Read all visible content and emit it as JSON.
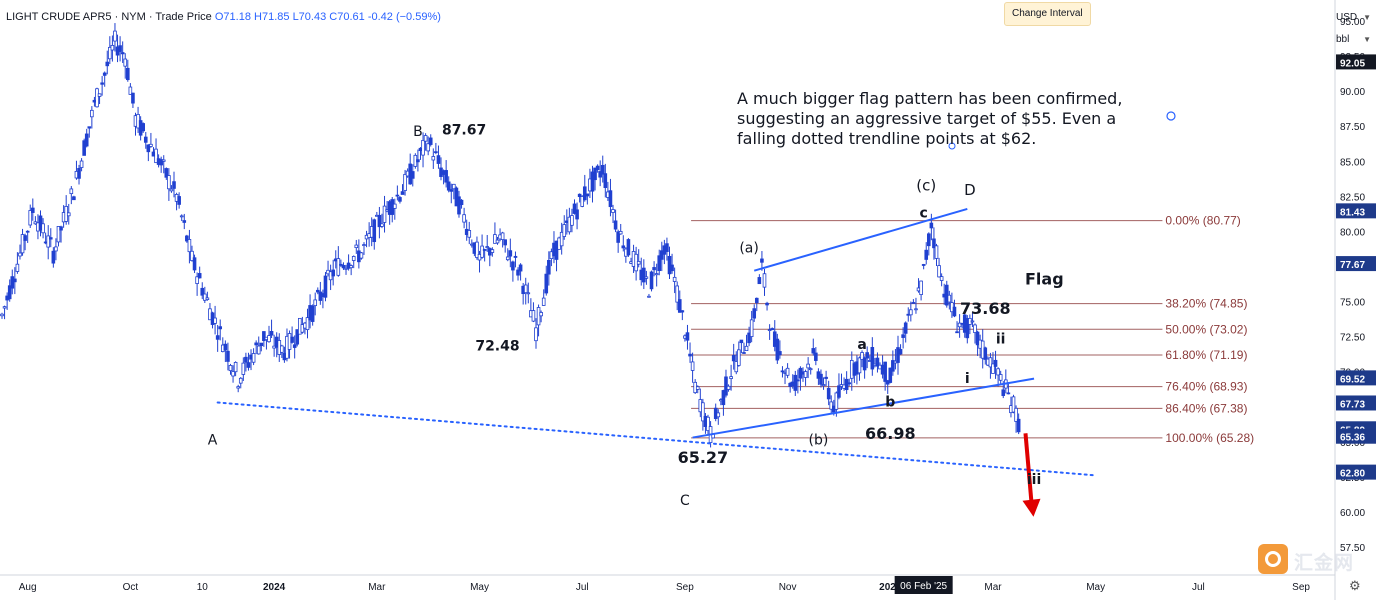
{
  "header": {
    "symbol": "LIGHT CRUDE APR5 · NYM · Trade Price",
    "open": "O71.18",
    "high": "H71.85",
    "low": "L70.43",
    "close": "C70.61",
    "change": "-0.42 (−0.59%)"
  },
  "tooltip": "Change Interval",
  "currency": "USD",
  "unit": "bbl",
  "watermark": "汇金网",
  "colors": {
    "candle": "#2040d0",
    "trendline": "#2962ff",
    "fib_line": "#8b3a3a",
    "arrow": "#e00000",
    "price_label_bg": "#1e3a8a"
  },
  "chart_data": {
    "type": "candlestick",
    "yaxis": {
      "range": [
        55.5,
        96.5
      ],
      "ticks": [
        "57.50",
        "60.00",
        "62.50",
        "65.00",
        "67.50",
        "70.00",
        "72.50",
        "75.00",
        "77.50",
        "80.00",
        "82.50",
        "85.00",
        "87.50",
        "90.00",
        "92.50",
        "95.00"
      ]
    },
    "xaxis": {
      "ticks": [
        {
          "label": "Aug",
          "t": 0.5
        },
        {
          "label": "Oct",
          "t": 2.5
        },
        {
          "label": "10",
          "t": 3.9
        },
        {
          "label": "2024",
          "t": 5.3
        },
        {
          "label": "Mar",
          "t": 7.3
        },
        {
          "label": "May",
          "t": 9.3
        },
        {
          "label": "Jul",
          "t": 11.3
        },
        {
          "label": "Sep",
          "t": 13.3
        },
        {
          "label": "Nov",
          "t": 15.3
        },
        {
          "label": "2025",
          "t": 17.3
        },
        {
          "label": "Mar",
          "t": 19.3
        },
        {
          "label": "May",
          "t": 21.3
        },
        {
          "label": "Jul",
          "t": 23.3
        },
        {
          "label": "Sep",
          "t": 25.3
        }
      ],
      "date_flag": {
        "label": "06 Feb '25",
        "t": 17.95
      }
    },
    "price_path": [
      [
        0.0,
        74.0
      ],
      [
        0.6,
        81.5
      ],
      [
        1.0,
        78.5
      ],
      [
        1.4,
        83.0
      ],
      [
        1.8,
        89.0
      ],
      [
        2.2,
        93.5
      ],
      [
        2.4,
        92.5
      ],
      [
        2.6,
        88.0
      ],
      [
        3.0,
        85.5
      ],
      [
        3.4,
        82.5
      ],
      [
        3.7,
        78.0
      ],
      [
        4.1,
        74.0
      ],
      [
        4.6,
        69.5
      ],
      [
        5.1,
        72.5
      ],
      [
        5.5,
        71.5
      ],
      [
        6.0,
        74.0
      ],
      [
        6.5,
        77.5
      ],
      [
        7.0,
        78.5
      ],
      [
        7.4,
        81.0
      ],
      [
        7.8,
        83.0
      ],
      [
        8.3,
        86.5
      ],
      [
        8.6,
        84.0
      ],
      [
        8.9,
        82.0
      ],
      [
        9.3,
        78.0
      ],
      [
        9.7,
        79.5
      ],
      [
        10.1,
        77.0
      ],
      [
        10.4,
        73.0
      ],
      [
        10.7,
        78.0
      ],
      [
        11.1,
        81.0
      ],
      [
        11.4,
        83.0
      ],
      [
        11.7,
        84.5
      ],
      [
        12.0,
        80.0
      ],
      [
        12.3,
        78.0
      ],
      [
        12.6,
        76.0
      ],
      [
        12.9,
        79.0
      ],
      [
        13.1,
        76.5
      ],
      [
        13.3,
        73.0
      ],
      [
        13.5,
        69.0
      ],
      [
        13.8,
        65.5
      ],
      [
        14.2,
        70.0
      ],
      [
        14.6,
        73.0
      ],
      [
        14.8,
        77.5
      ],
      [
        15.0,
        72.5
      ],
      [
        15.4,
        69.0
      ],
      [
        15.8,
        71.0
      ],
      [
        16.2,
        67.5
      ],
      [
        16.6,
        70.5
      ],
      [
        17.0,
        71.0
      ],
      [
        17.3,
        69.5
      ],
      [
        17.7,
        74.0
      ],
      [
        17.9,
        76.0
      ],
      [
        18.1,
        80.5
      ],
      [
        18.3,
        76.5
      ],
      [
        18.6,
        73.5
      ],
      [
        18.9,
        73.0
      ],
      [
        19.1,
        71.5
      ],
      [
        19.3,
        70.5
      ],
      [
        19.5,
        69.0
      ],
      [
        19.7,
        67.5
      ],
      [
        19.85,
        65.8
      ]
    ],
    "fib_levels": [
      {
        "label": "0.00% (80.77)",
        "value": 80.77
      },
      {
        "label": "38.20% (74.85)",
        "value": 74.85
      },
      {
        "label": "50.00% (73.02)",
        "value": 73.02
      },
      {
        "label": "61.80% (71.19)",
        "value": 71.19
      },
      {
        "label": "76.40% (68.93)",
        "value": 68.93
      },
      {
        "label": "86.40% (67.38)",
        "value": 67.38
      },
      {
        "label": "100.00% (65.28)",
        "value": 65.28
      }
    ],
    "price_labels": [
      {
        "value": "92.05",
        "price": 92.05
      },
      {
        "value": "81.43",
        "price": 81.43
      },
      {
        "value": "77.67",
        "price": 77.67
      },
      {
        "value": "69.52",
        "price": 69.52
      },
      {
        "value": "67.73",
        "price": 67.73
      },
      {
        "value": "65.89",
        "price": 65.89
      },
      {
        "value": "65.36",
        "price": 65.36
      },
      {
        "value": "62.80",
        "price": 62.8
      }
    ],
    "trendlines": [
      {
        "kind": "solid",
        "from": [
          13.45,
          65.3
        ],
        "to": [
          20.1,
          69.5
        ]
      },
      {
        "kind": "solid",
        "from": [
          14.65,
          77.2
        ],
        "to": [
          18.8,
          81.6
        ]
      },
      {
        "kind": "dotted",
        "from": [
          4.2,
          67.8
        ],
        "to": [
          21.3,
          62.6
        ]
      }
    ],
    "wave_labels": [
      {
        "text": "A",
        "t": 4.1,
        "y": 64.8,
        "bold": false,
        "size": 14
      },
      {
        "text": "B",
        "t": 8.1,
        "y": 86.8,
        "bold": false,
        "size": 14
      },
      {
        "text": "C",
        "t": 13.3,
        "y": 60.5,
        "bold": false,
        "size": 14
      },
      {
        "text": "D",
        "t": 18.85,
        "y": 82.6,
        "bold": false,
        "size": 15
      },
      {
        "text": "(a)",
        "t": 14.55,
        "y": 78.5,
        "bold": false,
        "size": 14
      },
      {
        "text": "(b)",
        "t": 15.9,
        "y": 64.8,
        "bold": false,
        "size": 14
      },
      {
        "text": "(c)",
        "t": 18.0,
        "y": 82.9,
        "bold": false,
        "size": 15
      },
      {
        "text": "a",
        "t": 16.75,
        "y": 71.6,
        "bold": true,
        "size": 14
      },
      {
        "text": "b",
        "t": 17.3,
        "y": 67.5,
        "bold": true,
        "size": 14
      },
      {
        "text": "c",
        "t": 17.95,
        "y": 81.0,
        "bold": true,
        "size": 14
      },
      {
        "text": "i",
        "t": 18.8,
        "y": 69.2,
        "bold": true,
        "size": 14
      },
      {
        "text": "ii",
        "t": 19.45,
        "y": 72.0,
        "bold": true,
        "size": 14
      },
      {
        "text": "iii",
        "t": 20.1,
        "y": 62.0,
        "bold": true,
        "size": 14
      }
    ],
    "price_annotations": [
      {
        "text": "87.67",
        "t": 9.0,
        "y": 86.9,
        "bold": true,
        "size": 14
      },
      {
        "text": "72.48",
        "t": 9.65,
        "y": 71.5,
        "bold": true,
        "size": 14
      },
      {
        "text": "65.27",
        "t": 13.65,
        "y": 63.5,
        "bold": true,
        "size": 16
      },
      {
        "text": "66.98",
        "t": 17.3,
        "y": 65.2,
        "bold": true,
        "size": 16
      },
      {
        "text": "73.68",
        "t": 19.15,
        "y": 74.1,
        "bold": true,
        "size": 16
      },
      {
        "text": "Flag",
        "t": 20.3,
        "y": 76.2,
        "bold": true,
        "size": 16
      }
    ],
    "note": "A much bigger flag pattern has been confirmed, suggesting an aggressive target of $55. Even a falling dotted trendline points at $62."
  }
}
